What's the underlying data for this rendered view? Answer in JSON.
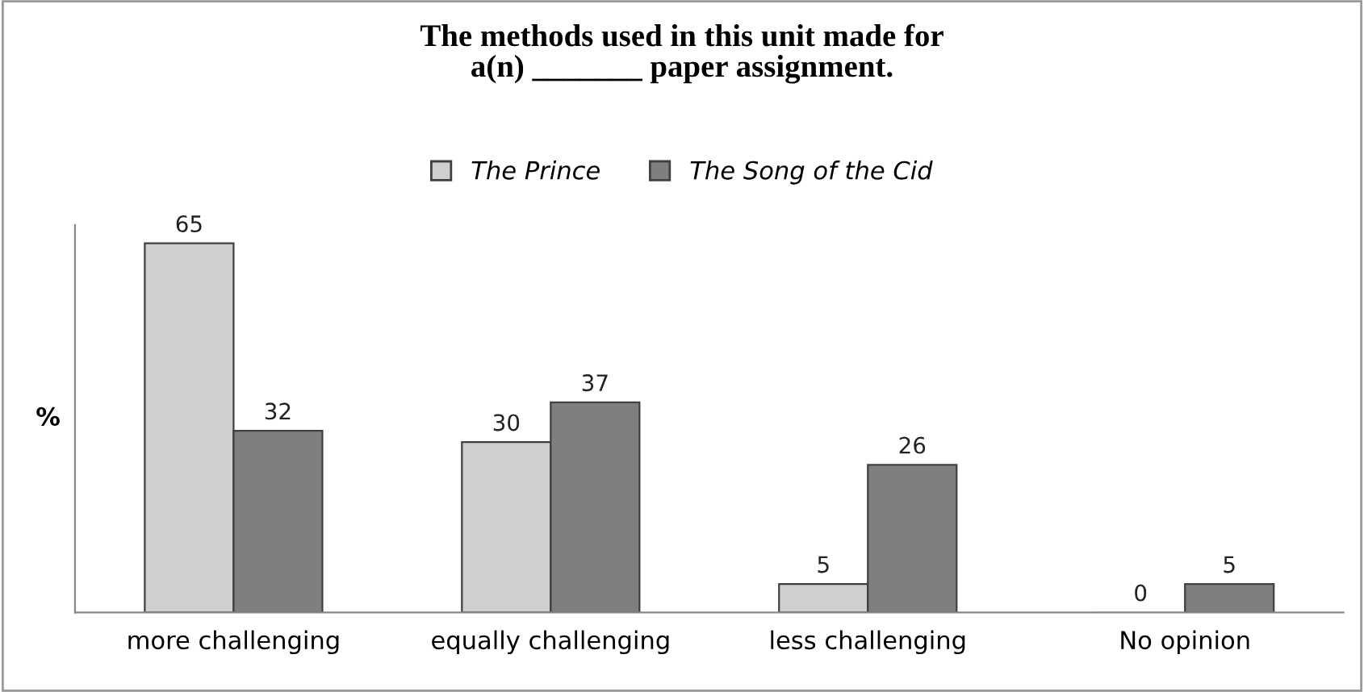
{
  "chart_data": {
    "type": "bar",
    "title": "The methods used in this unit made for\na(n) _______ paper assignment.",
    "ylabel": "%",
    "categories": [
      "more challenging",
      "equally challenging",
      "less challenging",
      "No opinion"
    ],
    "series": [
      {
        "name": "The Prince",
        "color": "#cfcfcf",
        "values": [
          65,
          30,
          5,
          0
        ]
      },
      {
        "name": "The Song of the Cid",
        "color": "#7f7f7f",
        "values": [
          32,
          37,
          26,
          5
        ]
      }
    ],
    "data_labels": true,
    "legend": "top",
    "grid": false
  }
}
